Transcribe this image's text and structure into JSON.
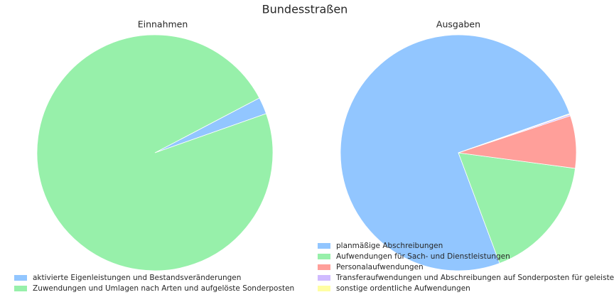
{
  "title": "Bundesstraßen",
  "chart_data": [
    {
      "type": "pie",
      "title": "Einnahmen",
      "categories": [
        "aktivierte Eigenleistungen und Bestandsveränderungen",
        "Zuwendungen und Umlagen nach Arten und aufgelöste Sonderposten"
      ],
      "values": [
        2.3,
        97.7
      ],
      "colors": [
        "#92c6ff",
        "#97f0aa"
      ]
    },
    {
      "type": "pie",
      "title": "Ausgaben",
      "categories": [
        "planmäßige Abschreibungen",
        "Aufwendungen für Sach- und Dienstleistungen",
        "Personalaufwendungen",
        "Transferaufwendungen und Abschreibungen auf Sonderposten für geleiste",
        "sonstige ordentliche Aufwendungen"
      ],
      "values": [
        75.3,
        17.2,
        7.2,
        0.2,
        0.1
      ],
      "colors": [
        "#92c6ff",
        "#97f0aa",
        "#ff9f9a",
        "#d0bbff",
        "#fffea3"
      ]
    }
  ]
}
